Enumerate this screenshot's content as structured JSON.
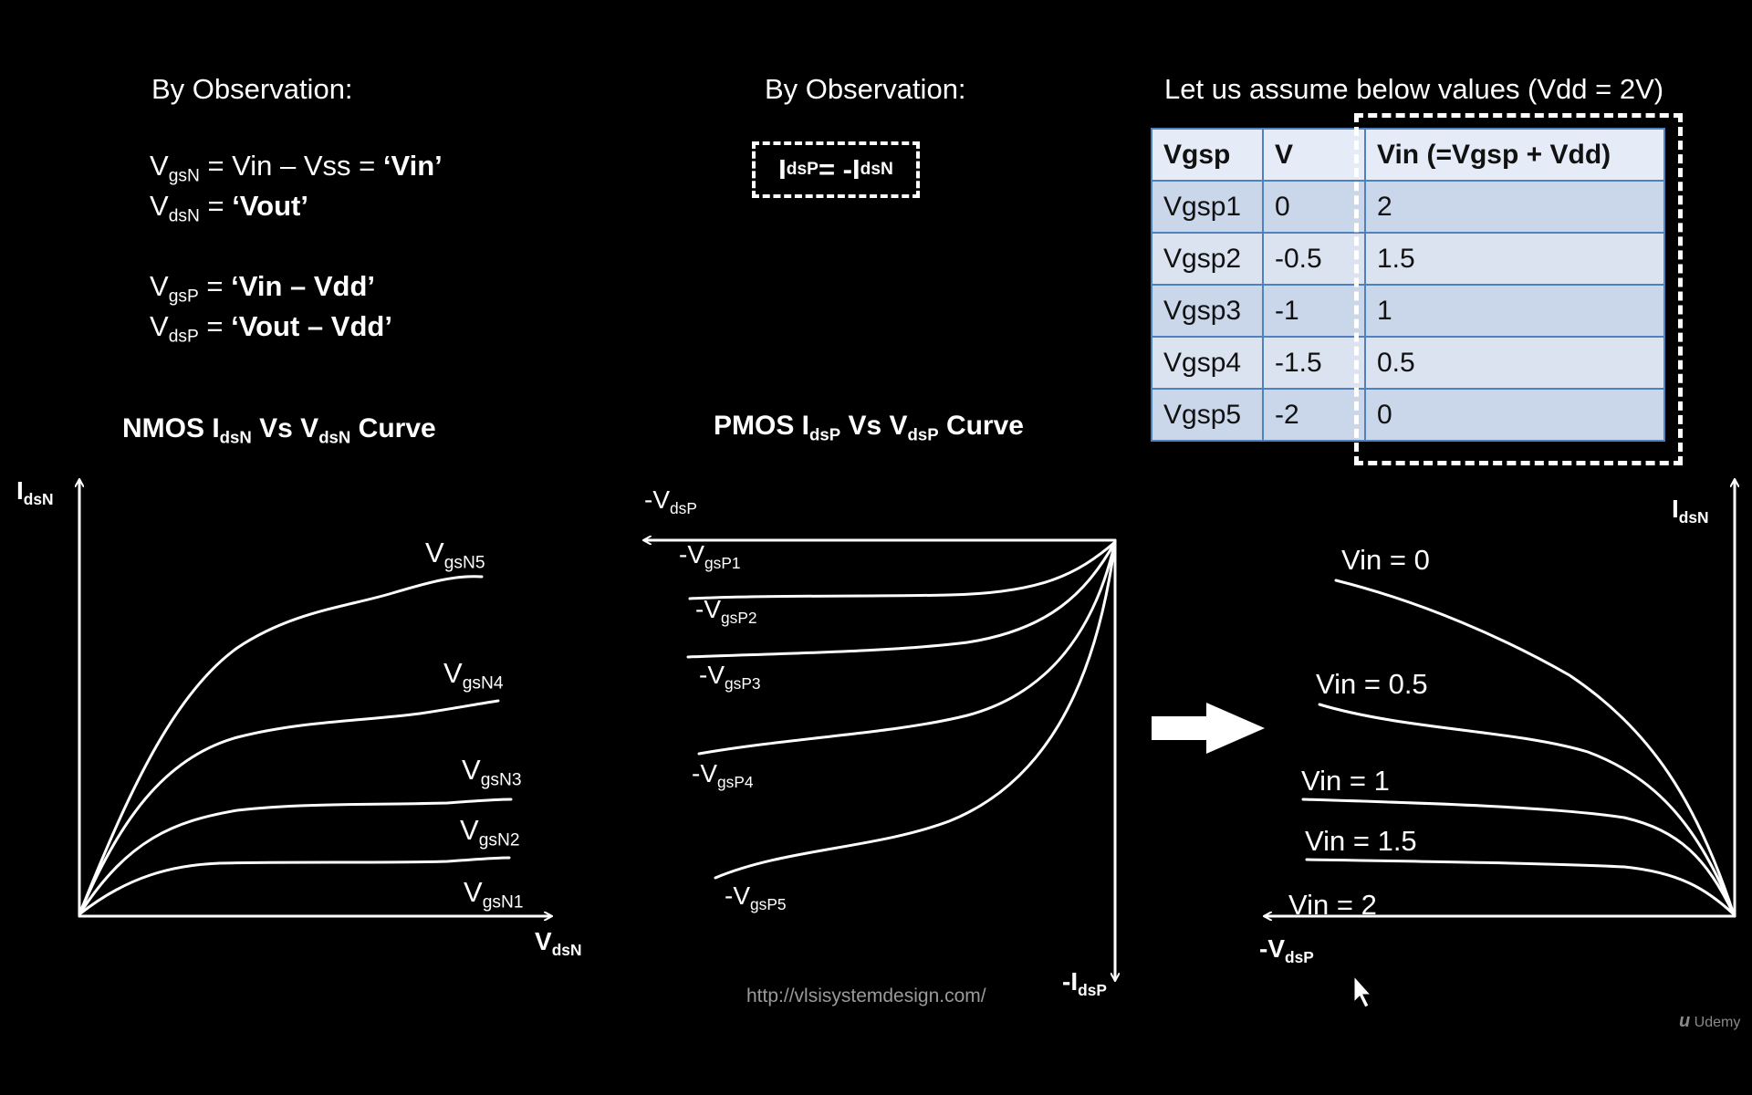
{
  "left_notes": {
    "heading": "By Observation:",
    "lines": [
      {
        "sym": "V",
        "sub": "gsN",
        "rhs_plain": " = Vin – Vss = ",
        "rhs_bold": "‘Vin’"
      },
      {
        "sym": "V",
        "sub": "dsN",
        "rhs_plain": " = ",
        "rhs_bold": "‘Vout’"
      },
      {
        "sym": "V",
        "sub": "gsP",
        "rhs_plain": " = ",
        "rhs_bold": "‘Vin – Vdd’"
      },
      {
        "sym": "V",
        "sub": "dsP",
        "rhs_plain": " = ",
        "rhs_bold": "‘Vout – Vdd’"
      }
    ]
  },
  "middle_notes": {
    "heading": "By Observation:",
    "relation": {
      "lhs": "I",
      "lhs_sub": "dsP",
      "eq": " = - ",
      "rhs": "I",
      "rhs_sub": "dsN"
    }
  },
  "table": {
    "caption": "Let us assume below values (Vdd = 2V)",
    "headers": [
      "Vgsp",
      "V",
      "Vin (=Vgsp + Vdd)"
    ],
    "rows": [
      [
        "Vgsp1",
        "0",
        "2"
      ],
      [
        "Vgsp2",
        "-0.5",
        "1.5"
      ],
      [
        "Vgsp3",
        "-1",
        "1"
      ],
      [
        "Vgsp4",
        "-1.5",
        "0.5"
      ],
      [
        "Vgsp5",
        "-2",
        "0"
      ]
    ]
  },
  "nmos_plot": {
    "title": {
      "a": "NMOS I",
      "a_sub": "dsN",
      "b": " Vs V",
      "b_sub": "dsN",
      "c": " Curve"
    },
    "y_axis": {
      "main": "I",
      "sub": "dsN"
    },
    "x_axis": {
      "main": "V",
      "sub": "dsN"
    },
    "curve_labels": [
      {
        "main": "V",
        "sub": "gsN5"
      },
      {
        "main": "V",
        "sub": "gsN4"
      },
      {
        "main": "V",
        "sub": "gsN3"
      },
      {
        "main": "V",
        "sub": "gsN2"
      },
      {
        "main": "V",
        "sub": "gsN1"
      }
    ]
  },
  "pmos_plot": {
    "title": {
      "a": "PMOS I",
      "a_sub": "dsP",
      "b": " Vs V",
      "b_sub": "dsP",
      "c": " Curve"
    },
    "x_axis": {
      "main": "-V",
      "sub": "dsP"
    },
    "y_axis": {
      "main": "-I",
      "sub": "dsP"
    },
    "curve_labels": [
      {
        "main": "-V",
        "sub": "gsP1"
      },
      {
        "main": "-V",
        "sub": "gsP2"
      },
      {
        "main": "-V",
        "sub": "gsP3"
      },
      {
        "main": "-V",
        "sub": "gsP4"
      },
      {
        "main": "-V",
        "sub": "gsP5"
      }
    ]
  },
  "transformed_plot": {
    "y_axis": {
      "main": "I",
      "sub": "dsN"
    },
    "x_axis": {
      "main": "-V",
      "sub": "dsP"
    },
    "curve_labels": [
      "Vin = 0",
      "Vin = 0.5",
      "Vin = 1",
      "Vin = 1.5",
      "Vin = 2"
    ]
  },
  "footer": {
    "url": "http://vlsisystemdesign.com/",
    "watermark": "Udemy"
  },
  "colors": {
    "background": "#000000",
    "foreground": "#ffffff",
    "table_border": "#4f81bd"
  }
}
